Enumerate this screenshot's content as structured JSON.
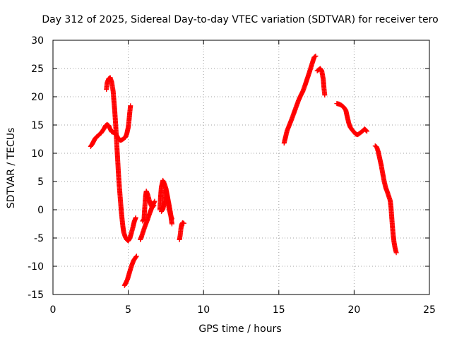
{
  "chart_data": {
    "type": "scatter",
    "title": "Day 312 of 2025, Sidereal Day-to-day VTEC variation (SDTVAR) for receiver tero",
    "xlabel": "GPS time / hours",
    "ylabel": "SDTVAR / TECUs",
    "xlim": [
      0,
      25
    ],
    "ylim": [
      -15,
      30
    ],
    "xticks": [
      "0",
      "5",
      "10",
      "15",
      "20",
      "25"
    ],
    "yticks": [
      "-15",
      "-10",
      "-5",
      "0",
      "5",
      "10",
      "15",
      "20",
      "25",
      "30"
    ],
    "grid": true,
    "marker": "plus",
    "color": "#ff0000",
    "series": [
      {
        "segments": [
          [
            [
              2.5,
              11.2
            ],
            [
              2.6,
              11.6
            ],
            [
              2.7,
              12.1
            ],
            [
              2.8,
              12.6
            ],
            [
              2.9,
              12.9
            ],
            [
              3.0,
              13.1
            ],
            [
              3.1,
              13.4
            ],
            [
              3.2,
              13.6
            ],
            [
              3.3,
              14.0
            ],
            [
              3.4,
              14.4
            ],
            [
              3.5,
              14.9
            ],
            [
              3.6,
              15.1
            ],
            [
              3.7,
              14.9
            ],
            [
              3.8,
              14.3
            ],
            [
              3.9,
              13.8
            ],
            [
              4.0,
              13.7
            ],
            [
              4.1,
              13.6
            ],
            [
              4.2,
              13.3
            ],
            [
              4.3,
              12.8
            ],
            [
              4.4,
              12.4
            ],
            [
              4.5,
              12.3
            ],
            [
              4.6,
              12.4
            ],
            [
              4.7,
              12.6
            ],
            [
              4.8,
              12.8
            ],
            [
              4.9,
              13.4
            ],
            [
              5.0,
              14.6
            ],
            [
              5.05,
              15.8
            ],
            [
              5.1,
              17.2
            ],
            [
              5.15,
              18.4
            ]
          ],
          [
            [
              3.55,
              21.3
            ],
            [
              3.6,
              22.5
            ],
            [
              3.7,
              23.2
            ],
            [
              3.8,
              23.4
            ],
            [
              3.9,
              22.6
            ],
            [
              4.0,
              20.9
            ],
            [
              4.05,
              19.2
            ],
            [
              4.1,
              17.6
            ],
            [
              4.15,
              15.6
            ],
            [
              4.2,
              13.4
            ],
            [
              4.25,
              11.0
            ],
            [
              4.3,
              8.7
            ],
            [
              4.35,
              6.4
            ],
            [
              4.4,
              4.4
            ],
            [
              4.45,
              2.7
            ],
            [
              4.5,
              1.0
            ],
            [
              4.55,
              -0.6
            ],
            [
              4.6,
              -1.9
            ],
            [
              4.65,
              -3.1
            ],
            [
              4.7,
              -4.0
            ],
            [
              4.8,
              -4.8
            ],
            [
              4.9,
              -5.3
            ],
            [
              5.0,
              -5.5
            ],
            [
              5.1,
              -5.1
            ],
            [
              5.2,
              -4.2
            ],
            [
              5.3,
              -3.2
            ],
            [
              5.4,
              -2.1
            ],
            [
              5.5,
              -1.4
            ]
          ],
          [
            [
              4.75,
              -13.4
            ],
            [
              4.85,
              -12.9
            ],
            [
              4.95,
              -12.3
            ],
            [
              5.05,
              -11.4
            ],
            [
              5.15,
              -10.5
            ],
            [
              5.25,
              -9.7
            ],
            [
              5.35,
              -9.0
            ],
            [
              5.45,
              -8.6
            ],
            [
              5.55,
              -8.2
            ]
          ],
          [
            [
              5.8,
              -5.3
            ],
            [
              5.9,
              -4.6
            ],
            [
              6.0,
              -3.8
            ],
            [
              6.1,
              -3.0
            ],
            [
              6.2,
              -2.3
            ],
            [
              6.3,
              -1.6
            ],
            [
              6.4,
              -0.8
            ],
            [
              6.5,
              -0.1
            ],
            [
              6.6,
              0.6
            ],
            [
              6.7,
              1.2
            ],
            [
              6.75,
              1.5
            ]
          ],
          [
            [
              5.95,
              -2.0
            ],
            [
              6.05,
              -1.6
            ],
            [
              6.1,
              0.5
            ],
            [
              6.15,
              2.4
            ],
            [
              6.2,
              3.3
            ],
            [
              6.3,
              2.6
            ],
            [
              6.4,
              1.6
            ],
            [
              6.5,
              0.9
            ],
            [
              6.6,
              0.4
            ],
            [
              6.7,
              0.8
            ]
          ],
          [
            [
              7.1,
              0.0
            ],
            [
              7.15,
              2.4
            ],
            [
              7.2,
              4.0
            ],
            [
              7.3,
              5.2
            ],
            [
              7.4,
              4.6
            ],
            [
              7.5,
              3.8
            ],
            [
              7.6,
              2.4
            ],
            [
              7.7,
              1.0
            ],
            [
              7.8,
              -0.5
            ],
            [
              7.85,
              -1.5
            ],
            [
              7.9,
              -2.5
            ]
          ],
          [
            [
              7.2,
              -0.3
            ],
            [
              7.3,
              0.1
            ],
            [
              7.4,
              1.3
            ],
            [
              7.5,
              3.4
            ],
            [
              7.6,
              2.2
            ],
            [
              7.7,
              0.3
            ],
            [
              7.8,
              -0.8
            ],
            [
              7.9,
              -1.6
            ]
          ],
          [
            [
              8.4,
              -5.3
            ],
            [
              8.45,
              -4.5
            ],
            [
              8.5,
              -3.3
            ],
            [
              8.55,
              -2.6
            ],
            [
              8.6,
              -2.3
            ],
            [
              8.7,
              -2.4
            ]
          ],
          [
            [
              15.35,
              11.8
            ],
            [
              15.45,
              12.9
            ],
            [
              15.55,
              14.0
            ],
            [
              15.7,
              15.0
            ],
            [
              15.85,
              16.0
            ],
            [
              16.0,
              17.1
            ],
            [
              16.15,
              18.2
            ],
            [
              16.3,
              19.3
            ],
            [
              16.45,
              20.2
            ],
            [
              16.6,
              21.0
            ],
            [
              16.75,
              22.1
            ],
            [
              16.9,
              23.3
            ],
            [
              17.05,
              24.5
            ],
            [
              17.2,
              25.8
            ],
            [
              17.35,
              27.0
            ],
            [
              17.45,
              27.2
            ]
          ],
          [
            [
              17.55,
              24.6
            ],
            [
              17.65,
              24.8
            ],
            [
              17.75,
              25.0
            ],
            [
              17.85,
              24.6
            ],
            [
              17.95,
              23.1
            ],
            [
              18.0,
              21.5
            ],
            [
              18.05,
              20.3
            ]
          ],
          [
            [
              18.85,
              18.8
            ],
            [
              19.0,
              18.7
            ],
            [
              19.15,
              18.5
            ],
            [
              19.3,
              18.2
            ],
            [
              19.45,
              17.6
            ],
            [
              19.55,
              16.4
            ],
            [
              19.65,
              15.3
            ],
            [
              19.75,
              14.6
            ],
            [
              19.85,
              14.2
            ],
            [
              19.95,
              13.9
            ],
            [
              20.1,
              13.4
            ],
            [
              20.25,
              13.3
            ],
            [
              20.4,
              13.6
            ],
            [
              20.55,
              13.9
            ],
            [
              20.7,
              14.3
            ],
            [
              20.85,
              13.9
            ]
          ],
          [
            [
              21.4,
              11.3
            ],
            [
              21.5,
              11.1
            ],
            [
              21.6,
              10.3
            ],
            [
              21.7,
              9.1
            ],
            [
              21.8,
              7.9
            ],
            [
              21.9,
              6.4
            ],
            [
              22.0,
              5.0
            ],
            [
              22.1,
              3.9
            ],
            [
              22.2,
              3.2
            ],
            [
              22.3,
              2.4
            ],
            [
              22.4,
              1.6
            ],
            [
              22.45,
              0.4
            ],
            [
              22.5,
              -1.4
            ],
            [
              22.55,
              -3.1
            ],
            [
              22.6,
              -4.6
            ],
            [
              22.65,
              -5.7
            ],
            [
              22.7,
              -6.5
            ],
            [
              22.75,
              -7.1
            ],
            [
              22.8,
              -7.6
            ]
          ]
        ]
      }
    ]
  }
}
